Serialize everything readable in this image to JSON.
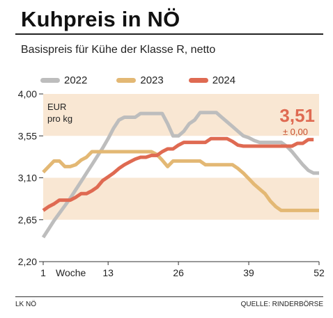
{
  "header": {
    "title": "Kuhpreis in NÖ",
    "subtitle": "Basispreis für Kühe der Klasse R, netto"
  },
  "footer": {
    "source_left": "LK NÖ",
    "source_right": "QUELLE: RINDERBÖRSE"
  },
  "colors": {
    "band": "#f9e7d3",
    "s2022": "#bdbdbd",
    "s2023": "#e3b874",
    "s2024": "#df6a52",
    "value": "#df6a52",
    "change": "#c8502f"
  },
  "chart_data": {
    "type": "line",
    "unit_label": [
      "EUR",
      "pro kg"
    ],
    "xlabel": "Woche",
    "x_ticks": [
      1,
      13,
      26,
      39,
      52
    ],
    "y_ticks": [
      "2,20",
      "2,65",
      "3,10",
      "3,55",
      "4,00"
    ],
    "y_tick_values": [
      2.2,
      2.65,
      3.1,
      3.55,
      4.0
    ],
    "ylim": [
      2.2,
      4.0
    ],
    "xlim": [
      1,
      52
    ],
    "grid": false,
    "legend_position": "top",
    "current_value": "3,51",
    "current_change": "± 0,00",
    "series": [
      {
        "name": "2022",
        "color_key": "s2022",
        "values": [
          2.46,
          2.55,
          2.64,
          2.72,
          2.8,
          2.88,
          2.97,
          3.06,
          3.15,
          3.24,
          3.33,
          3.42,
          3.52,
          3.63,
          3.72,
          3.75,
          3.75,
          3.75,
          3.79,
          3.79,
          3.79,
          3.79,
          3.79,
          3.68,
          3.55,
          3.55,
          3.6,
          3.68,
          3.72,
          3.8,
          3.8,
          3.8,
          3.8,
          3.75,
          3.7,
          3.65,
          3.6,
          3.55,
          3.53,
          3.5,
          3.48,
          3.48,
          3.48,
          3.48,
          3.48,
          3.44,
          3.38,
          3.31,
          3.24,
          3.18,
          3.15,
          3.15
        ]
      },
      {
        "name": "2023",
        "color_key": "s2023",
        "values": [
          3.16,
          3.22,
          3.28,
          3.28,
          3.22,
          3.22,
          3.24,
          3.29,
          3.32,
          3.38,
          3.38,
          3.38,
          3.38,
          3.38,
          3.38,
          3.38,
          3.38,
          3.38,
          3.38,
          3.38,
          3.38,
          3.35,
          3.29,
          3.22,
          3.28,
          3.28,
          3.28,
          3.28,
          3.28,
          3.28,
          3.24,
          3.24,
          3.24,
          3.24,
          3.24,
          3.24,
          3.2,
          3.15,
          3.09,
          3.03,
          2.98,
          2.93,
          2.85,
          2.79,
          2.75,
          2.75,
          2.75,
          2.75,
          2.75,
          2.75,
          2.75,
          2.75
        ]
      },
      {
        "name": "2024",
        "color_key": "s2024",
        "values": [
          2.75,
          2.79,
          2.82,
          2.86,
          2.86,
          2.86,
          2.89,
          2.93,
          2.93,
          2.96,
          3.0,
          3.07,
          3.11,
          3.15,
          3.2,
          3.24,
          3.27,
          3.3,
          3.32,
          3.32,
          3.34,
          3.34,
          3.38,
          3.41,
          3.41,
          3.45,
          3.48,
          3.48,
          3.48,
          3.48,
          3.48,
          3.52,
          3.52,
          3.52,
          3.52,
          3.49,
          3.45,
          3.44,
          3.44,
          3.44,
          3.44,
          3.44,
          3.44,
          3.44,
          3.44,
          3.44,
          3.44,
          3.47,
          3.47,
          3.51,
          3.51
        ]
      }
    ]
  }
}
